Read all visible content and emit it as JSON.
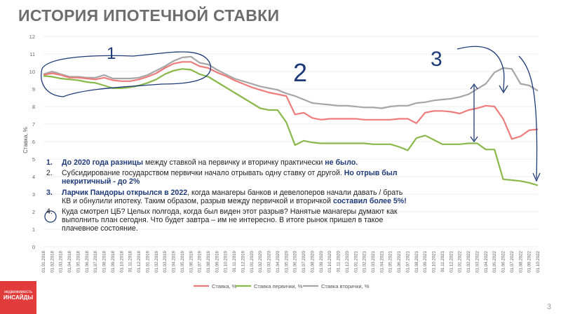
{
  "title": "ИСТОРИЯ ИПОТЕЧНОЙ СТАВКИ",
  "page_number": "3",
  "logo": {
    "line1": "недвижимость",
    "line2": "ИНСАЙДЫ"
  },
  "notes": [
    {
      "num": "1.",
      "bold": "До 2020 года разницы",
      "text": " между ставкой на первичку и вторичку практически ",
      "bold2": "не было."
    },
    {
      "num": "2.",
      "text": "Субсидирование государством первички начало отрывать одну ставку от другой. ",
      "bold": "Но отрыв был некритичный - до 2%"
    },
    {
      "num": "3.",
      "bold": "Ларчик Пандоры открылся в 2022",
      "text": ", когда манагеры банков и девелоперов начали давать / брать КВ и обнулили ипотеку. Таким образом, разрыв между первичкой и вторичкой ",
      "bold2": "составил более 5%!"
    },
    {
      "num": "4.",
      "text": "Куда смотрел ЦБ? Целых полгода, когда был виден этот разрыв? Нанятые манагеры думают как выполнить план сегодня. Что будет завтра – им не интересно. В итоге рынок пришел в такое плачевное состояние."
    }
  ],
  "annotations": {
    "mark1": "1",
    "mark2": "2",
    "mark3": "3"
  },
  "chart_data": {
    "type": "line",
    "ylabel": "Ставка, %",
    "xlabel": "",
    "ylim": [
      0,
      12
    ],
    "yticks": [
      0,
      1,
      2,
      3,
      4,
      5,
      6,
      7,
      8,
      9,
      10,
      11,
      12
    ],
    "grid": true,
    "legend_position": "bottom",
    "x": [
      "01.01.2018",
      "01.02.2018",
      "01.03.2018",
      "01.04.2018",
      "01.05.2018",
      "01.06.2018",
      "01.07.2018",
      "01.08.2018",
      "01.09.2018",
      "01.10.2018",
      "01.11.2018",
      "01.12.2018",
      "01.01.2019",
      "01.02.2019",
      "01.03.2019",
      "01.04.2019",
      "01.05.2019",
      "01.06.2019",
      "01.07.2019",
      "01.08.2019",
      "01.09.2019",
      "01.10.2019",
      "01.11.2019",
      "01.12.2019",
      "01.01.2020",
      "01.02.2020",
      "01.03.2020",
      "01.04.2020",
      "01.05.2020",
      "01.06.2020",
      "01.07.2020",
      "01.08.2020",
      "01.09.2020",
      "01.10.2020",
      "01.11.2020",
      "01.12.2020",
      "01.01.2021",
      "01.02.2021",
      "01.03.2021",
      "01.04.2021",
      "01.05.2021",
      "01.06.2021",
      "01.07.2021",
      "01.08.2021",
      "01.09.2021",
      "01.10.2021",
      "01.11.2021",
      "01.12.2021",
      "01.01.2022",
      "01.02.2022",
      "01.03.2022",
      "01.04.2022",
      "01.05.2022",
      "01.06.2022",
      "01.07.2022",
      "01.08.2022",
      "01.09.2022",
      "01.10.2022"
    ],
    "series": [
      {
        "name": "Ставка, %",
        "color": "#ef7b7b",
        "values": [
          9.8,
          9.9,
          9.8,
          9.65,
          9.65,
          9.6,
          9.55,
          9.65,
          9.5,
          9.45,
          9.45,
          9.55,
          9.7,
          9.9,
          10.2,
          10.45,
          10.55,
          10.55,
          10.3,
          10.2,
          9.95,
          9.75,
          9.5,
          9.3,
          9.1,
          8.95,
          8.8,
          8.7,
          8.6,
          7.55,
          7.65,
          7.35,
          7.25,
          7.3,
          7.3,
          7.3,
          7.3,
          7.25,
          7.25,
          7.25,
          7.25,
          7.3,
          7.3,
          7.05,
          7.65,
          7.75,
          7.75,
          7.7,
          7.6,
          7.8,
          7.9,
          8.05,
          8.0,
          7.3,
          6.15,
          6.3,
          6.65,
          6.7
        ]
      },
      {
        "name": "Ставка первички, %",
        "color": "#8ab84a",
        "values": [
          9.75,
          9.7,
          9.6,
          9.55,
          9.5,
          9.4,
          9.35,
          9.2,
          9.05,
          9.05,
          9.1,
          9.2,
          9.35,
          9.55,
          9.85,
          10.05,
          10.15,
          10.1,
          9.85,
          9.7,
          9.4,
          9.1,
          8.8,
          8.5,
          8.2,
          7.9,
          7.8,
          7.8,
          7.1,
          5.8,
          6.05,
          5.95,
          5.9,
          5.9,
          5.9,
          5.9,
          5.9,
          5.9,
          5.85,
          5.85,
          5.85,
          5.7,
          5.5,
          6.2,
          6.35,
          6.1,
          5.85,
          5.85,
          5.85,
          5.9,
          5.9,
          5.55,
          5.55,
          3.85,
          3.8,
          3.75,
          3.65,
          3.5
        ]
      },
      {
        "name": "Ставка вторички, %",
        "color": "#a6a6a6",
        "values": [
          9.85,
          10.0,
          9.85,
          9.7,
          9.7,
          9.65,
          9.65,
          9.8,
          9.6,
          9.6,
          9.6,
          9.65,
          9.8,
          10.05,
          10.3,
          10.6,
          10.8,
          10.85,
          10.5,
          10.4,
          10.1,
          9.85,
          9.6,
          9.45,
          9.3,
          9.15,
          9.05,
          8.95,
          8.75,
          8.6,
          8.4,
          8.2,
          8.15,
          8.1,
          8.05,
          8.05,
          8.0,
          7.95,
          7.95,
          7.9,
          8.0,
          8.05,
          8.05,
          8.2,
          8.25,
          8.35,
          8.4,
          8.45,
          8.55,
          8.7,
          9.0,
          9.3,
          9.95,
          10.2,
          10.15,
          9.3,
          9.2,
          8.9
        ]
      }
    ]
  }
}
